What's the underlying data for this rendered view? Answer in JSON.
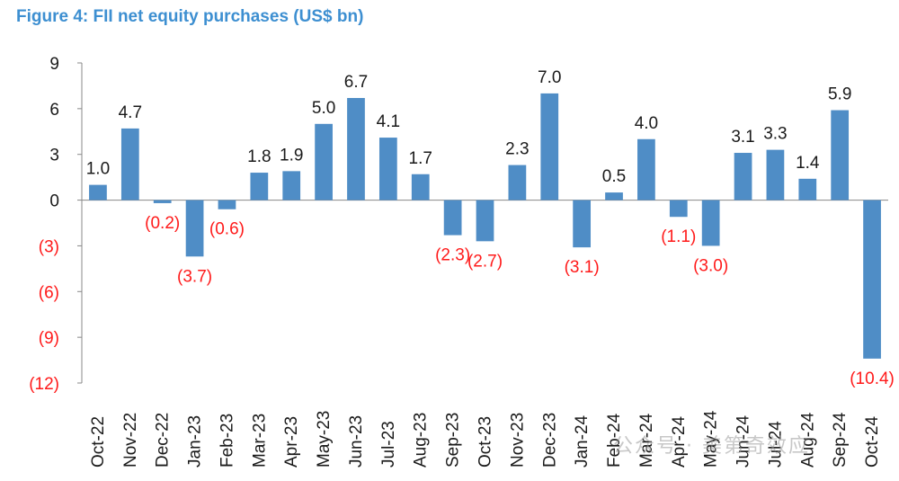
{
  "title": "Figure 4: FII net equity purchases (US$ bn)",
  "watermark": "公众号 · 美第奇效应",
  "colors": {
    "bar": "#4f8dc6",
    "negative_label": "#ff1a1a",
    "positive_label": "#1a1a1a",
    "axis": "#888888",
    "title": "#3d8fd1"
  },
  "chart_data": {
    "type": "bar",
    "title": "Figure 4: FII net equity purchases (US$ bn)",
    "xlabel": "",
    "ylabel": "",
    "ylim": [
      -12,
      9
    ],
    "yticks": [
      9,
      6,
      3,
      0,
      -3,
      -6,
      -9,
      -12
    ],
    "ytick_labels": [
      "9",
      "6",
      "3",
      "0",
      "(3)",
      "(6)",
      "(9)",
      "(12)"
    ],
    "grid": false,
    "categories": [
      "Oct-22",
      "Nov-22",
      "Dec-22",
      "Jan-23",
      "Feb-23",
      "Mar-23",
      "Apr-23",
      "May-23",
      "Jun-23",
      "Jul-23",
      "Aug-23",
      "Sep-23",
      "Oct-23",
      "Nov-23",
      "Dec-23",
      "Jan-24",
      "Feb-24",
      "Mar-24",
      "Apr-24",
      "May-24",
      "Jun-24",
      "Jul-24",
      "Aug-24",
      "Sep-24",
      "Oct-24"
    ],
    "values": [
      1.0,
      4.7,
      -0.2,
      -3.7,
      -0.6,
      1.8,
      1.9,
      5.0,
      6.7,
      4.1,
      1.7,
      -2.3,
      -2.7,
      2.3,
      7.0,
      -3.1,
      0.5,
      4.0,
      -1.1,
      -3.0,
      3.1,
      3.3,
      1.4,
      5.9,
      -10.4
    ],
    "data_labels": [
      "1.0",
      "4.7",
      "(0.2)",
      "(3.7)",
      "(0.6)",
      "1.8",
      "1.9",
      "5.0",
      "6.7",
      "4.1",
      "1.7",
      "(2.3)",
      "(2.7)",
      "2.3",
      "7.0",
      "(3.1)",
      "0.5",
      "4.0",
      "(1.1)",
      "(3.0)",
      "3.1",
      "3.3",
      "1.4",
      "5.9",
      "(10.4)"
    ]
  }
}
